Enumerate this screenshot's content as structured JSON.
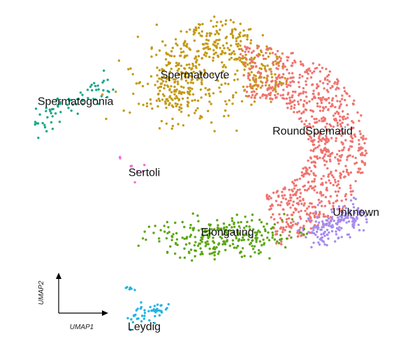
{
  "chart_data": {
    "type": "scatter",
    "title": "",
    "xlabel": "UMAP1",
    "ylabel": "UMAP2",
    "grid": false,
    "legend": "none",
    "xlim": [
      -12,
      10
    ],
    "ylim": [
      -10,
      10
    ],
    "series": [
      {
        "name": "Spermatogonia",
        "color": "#1aa987",
        "count": 70,
        "shape": "line",
        "points": [
          [
            -10.8,
            3.4
          ],
          [
            -6.6,
            6.0
          ]
        ],
        "spread": 0.45,
        "label": [
          -8.6,
          4.9
        ]
      },
      {
        "name": "Spermatocyte",
        "color": "#c49a14",
        "count": 340,
        "shape": "arc",
        "center": [
          -0.6,
          5.6
        ],
        "radius": [
          2.6,
          3.3
        ],
        "arc": [
          0,
          200
        ],
        "thickness": 1.9,
        "extra": [
          [
            -2.0,
            6.0,
            1.8,
            220
          ]
        ],
        "label": [
          -2.0,
          6.5
        ]
      },
      {
        "name": "RoundSpematid",
        "color": "#f07470",
        "count": 850,
        "shape": "arc",
        "center": [
          1.4,
          2.2
        ],
        "radius": [
          4.5,
          4.5
        ],
        "arc": [
          -80,
          100
        ],
        "thickness": 3.2,
        "label": [
          4.5,
          3.1
        ]
      },
      {
        "name": "Unknown",
        "color": "#a78cef",
        "count": 170,
        "shape": "line",
        "points": [
          [
            4.2,
            -3.1
          ],
          [
            7.2,
            -1.8
          ]
        ],
        "spread": 0.5,
        "label": [
          6.9,
          -1.8
        ]
      },
      {
        "name": "Elongating",
        "color": "#5ba610",
        "count": 260,
        "shape": "blob",
        "center": [
          -0.4,
          -3.3
        ],
        "size": [
          3.6,
          0.95
        ],
        "label": [
          -0.2,
          -3.0
        ]
      },
      {
        "name": "Sertoli",
        "color": "#f06bd8",
        "count": 8,
        "shape": "blob",
        "center": [
          -5.8,
          0.8
        ],
        "size": [
          1.4,
          0.6
        ],
        "label": [
          -4.8,
          0.6
        ]
      },
      {
        "name": "Leydig",
        "color": "#20b3e3",
        "count": 48,
        "shape": "line",
        "points": [
          [
            -5.7,
            -8.2
          ],
          [
            -3.7,
            -7.6
          ]
        ],
        "spread": 0.25,
        "extra": [
          [
            -5.6,
            -6.4,
            0.2,
            6
          ]
        ],
        "label": [
          -4.8,
          -8.7
        ]
      }
    ]
  }
}
